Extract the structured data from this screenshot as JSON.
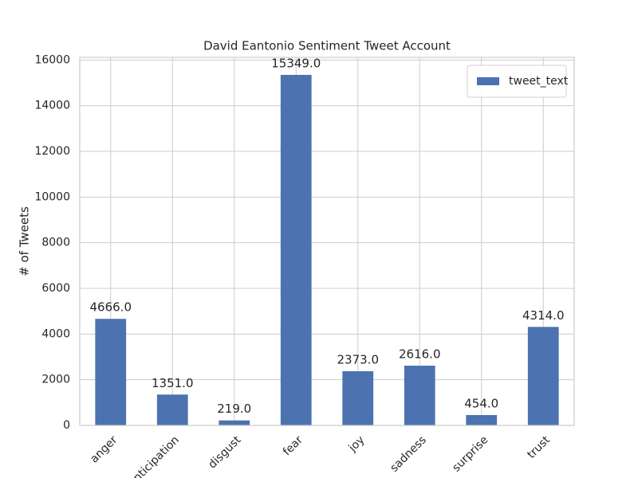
{
  "chart_data": {
    "type": "bar",
    "title": "David Eantonio Sentiment Tweet Account",
    "y_label": "# of Tweets",
    "categories": [
      "anger",
      "anticipation",
      "disgust",
      "fear",
      "joy",
      "sadness",
      "surprise",
      "trust"
    ],
    "series": [
      {
        "name": "tweet_text",
        "color": "#4c72b0",
        "values": [
          4666,
          1351,
          219,
          15349,
          2373,
          2616,
          454,
          4314
        ],
        "value_labels": [
          "4666.0",
          "1351.0",
          "219.0",
          "15349.0",
          "2373.0",
          "2616.0",
          "454.0",
          "4314.0"
        ]
      }
    ],
    "ylim": [
      0,
      16116.45
    ],
    "yticks": [
      0,
      2000,
      4000,
      6000,
      8000,
      10000,
      12000,
      14000,
      16000
    ],
    "grid": true,
    "legend": "upper right"
  }
}
